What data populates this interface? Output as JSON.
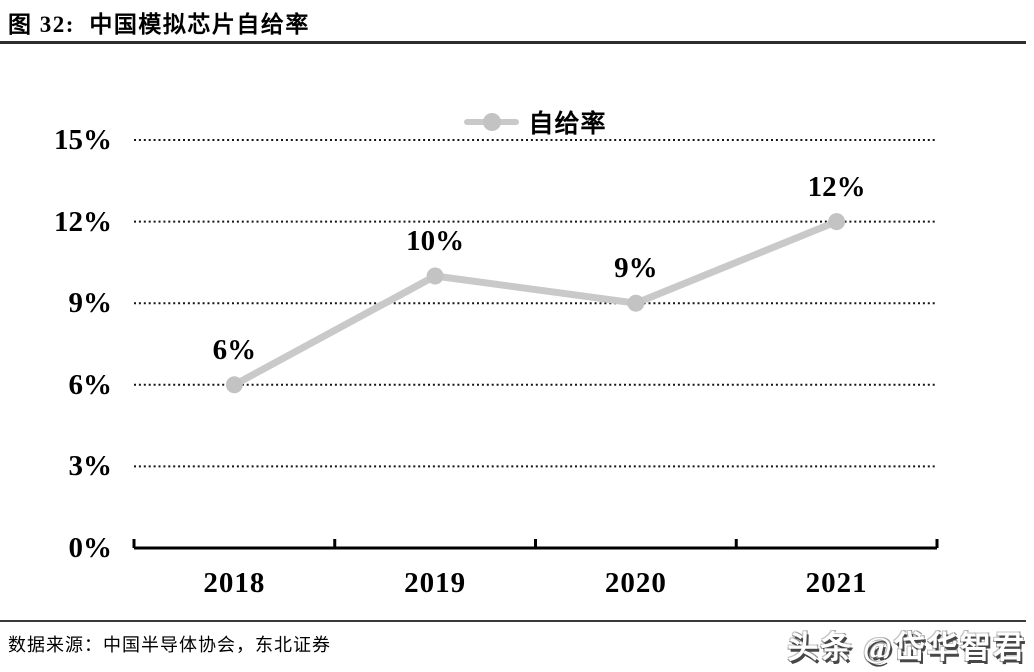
{
  "header": {
    "title": "图 32:  中国模拟芯片自给率"
  },
  "legend": {
    "label": "自给率"
  },
  "chart_data": {
    "type": "line",
    "title": "中国模拟芯片自给率",
    "categories": [
      "2018",
      "2019",
      "2020",
      "2021"
    ],
    "series": [
      {
        "name": "自给率",
        "values": [
          6,
          10,
          9,
          12
        ]
      }
    ],
    "point_labels": [
      "6%",
      "10%",
      "9%",
      "12%"
    ],
    "y_tick_labels": [
      "0%",
      "3%",
      "6%",
      "9%",
      "12%",
      "15%"
    ],
    "y_tick_values": [
      0,
      3,
      6,
      9,
      12,
      15
    ],
    "ylim": [
      0,
      15
    ],
    "xlabel": "",
    "ylabel": "",
    "grid": "horizontal-dotted",
    "legend_position": "top-center",
    "line_color": "#c9c9c9",
    "marker_color": "#c3c3c3",
    "grid_color": "#141414",
    "axis_color": "#000000",
    "label_color": "#000000"
  },
  "footer": {
    "source": "数据来源：中国半导体协会，东北证券",
    "watermark": "头条 @岱华智君"
  }
}
